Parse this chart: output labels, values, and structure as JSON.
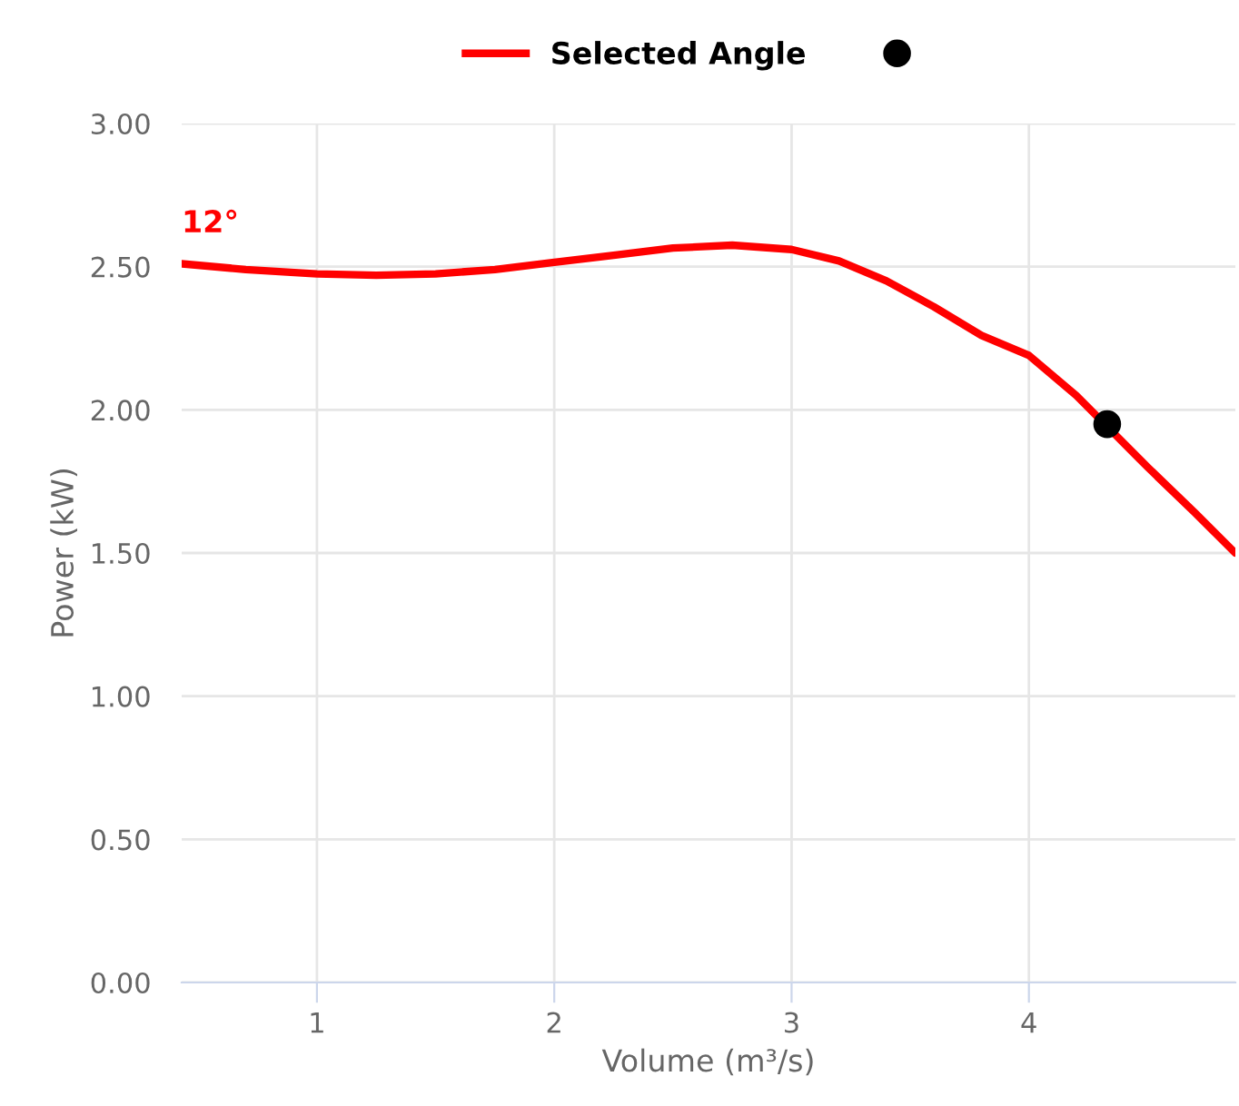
{
  "chart_data": {
    "type": "line",
    "xlabel": "Volume (m³/s)",
    "ylabel": "Power (kW)",
    "series": [
      {
        "name": "Selected Angle",
        "color": "#ff0000",
        "x": [
          0.43,
          0.7,
          1.0,
          1.25,
          1.5,
          1.75,
          2.0,
          2.25,
          2.5,
          2.75,
          3.0,
          3.2,
          3.4,
          3.6,
          3.8,
          4.0,
          4.2,
          4.5,
          4.7,
          4.87
        ],
        "values": [
          2.51,
          2.49,
          2.475,
          2.47,
          2.475,
          2.49,
          2.515,
          2.54,
          2.565,
          2.575,
          2.56,
          2.52,
          2.45,
          2.36,
          2.26,
          2.19,
          2.05,
          1.8,
          1.64,
          1.5
        ]
      },
      {
        "type": "scatter",
        "color": "#000000",
        "x": [
          4.33
        ],
        "values": [
          1.95
        ],
        "marker": "circle"
      }
    ],
    "annotations": [
      {
        "text": "12°",
        "x": 0.43,
        "y": 2.51
      }
    ],
    "xlim": [
      0.43,
      4.87
    ],
    "xticks": [
      1,
      2,
      3,
      4
    ],
    "ylim": [
      0,
      3
    ],
    "yticks": [
      {
        "value": 0,
        "label": "0.00"
      },
      {
        "value": 0.5,
        "label": "0.50"
      },
      {
        "value": 1,
        "label": "1.00"
      },
      {
        "value": 1.5,
        "label": "1.50"
      },
      {
        "value": 2,
        "label": "2.00"
      },
      {
        "value": 2.5,
        "label": "2.50"
      },
      {
        "value": 3,
        "label": "3.00"
      }
    ],
    "grid": true,
    "legend": "top"
  }
}
